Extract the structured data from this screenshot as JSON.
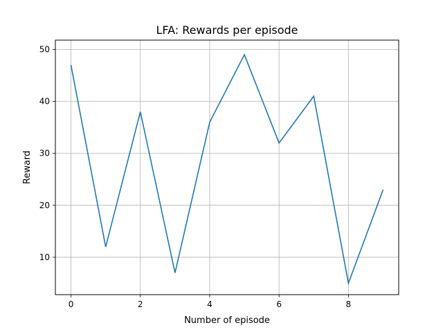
{
  "chart_data": {
    "type": "line",
    "title": "LFA: Rewards per episode",
    "xlabel": "Number of episode",
    "ylabel": "Reward",
    "x": [
      0,
      1,
      2,
      3,
      4,
      5,
      6,
      7,
      8,
      9
    ],
    "series": [
      {
        "values": [
          47,
          12,
          38,
          7,
          36,
          49,
          32,
          41,
          5,
          23
        ]
      }
    ],
    "xlim": [
      -0.45,
      9.45
    ],
    "ylim": [
      2.8,
      51.8
    ],
    "xticks": [
      0,
      2,
      4,
      6,
      8
    ],
    "yticks": [
      10,
      20,
      30,
      40,
      50
    ],
    "grid": true,
    "line_color": "#1f77b4"
  }
}
